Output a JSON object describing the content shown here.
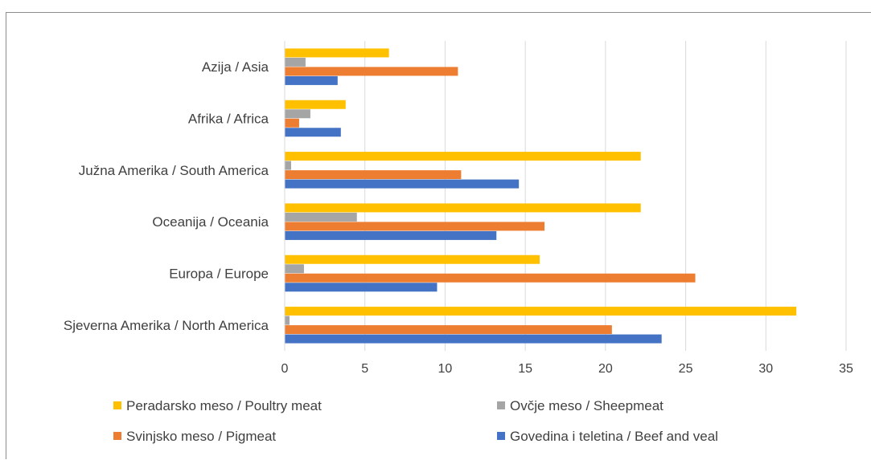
{
  "chart_data": {
    "type": "bar",
    "orientation": "horizontal",
    "categories": [
      "Azija / Asia",
      "Afrika / Africa",
      "Južna Amerika / South America",
      "Oceanija / Oceania",
      "Europa / Europe",
      "Sjeverna Amerika / North America"
    ],
    "series": [
      {
        "name": "Peradarsko meso / Poultry meat",
        "color": "#ffc000",
        "values": [
          6.5,
          3.8,
          22.2,
          22.2,
          15.9,
          31.9
        ]
      },
      {
        "name": "Ovčje meso / Sheepmeat",
        "color": "#a5a5a5",
        "values": [
          1.3,
          1.6,
          0.4,
          4.5,
          1.2,
          0.3
        ]
      },
      {
        "name": "Svinjsko meso / Pigmeat",
        "color": "#ed7d31",
        "values": [
          10.8,
          0.9,
          11.0,
          16.2,
          25.6,
          20.4
        ]
      },
      {
        "name": "Govedina i teletina / Beef and veal",
        "color": "#4472c4",
        "values": [
          3.3,
          3.5,
          14.6,
          13.2,
          9.5,
          23.5
        ]
      }
    ],
    "xlim": [
      0,
      35
    ],
    "xticks": [
      "0",
      "5",
      "10",
      "15",
      "20",
      "25",
      "30",
      "35"
    ],
    "grid": "vertical",
    "legend": "bottom",
    "legend_order": [
      0,
      1,
      2,
      3
    ]
  }
}
